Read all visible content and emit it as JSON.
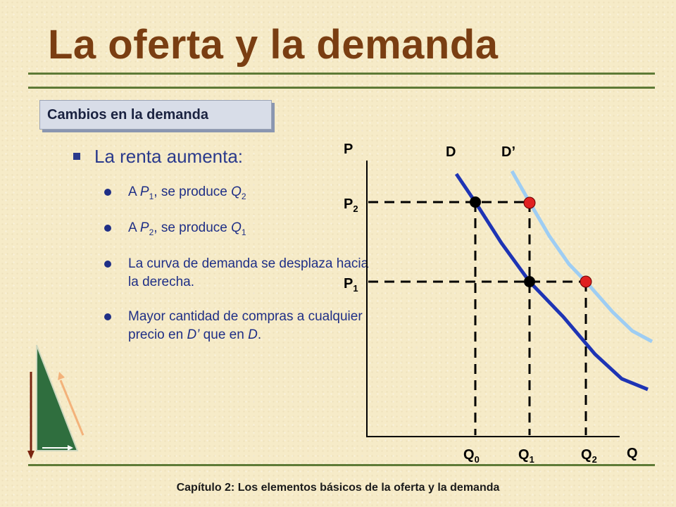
{
  "title": "La oferta y la demanda",
  "tag": "Cambios en la demanda",
  "bullet_main": "La renta aumenta:",
  "bullets": [
    {
      "a": "A ",
      "v1": "P",
      "s1": "1",
      "b": ", se produce ",
      "v2": "Q",
      "s2": "2"
    },
    {
      "a": "A ",
      "v1": "P",
      "s1": "2",
      "b": ", se produce ",
      "v2": "Q",
      "s2": "1"
    },
    {
      "text": "La curva de demanda se desplaza hacia la derecha."
    },
    {
      "pre": "Mayor cantidad de compras a cualquier precio en ",
      "d1": "D’",
      "mid": " que en ",
      "d2": "D",
      "post": "."
    }
  ],
  "footer": "Capítulo 2: Los elementos básicos de la oferta y la demanda",
  "colors": {
    "title": "#7a3e12",
    "rule": "#5e7a36",
    "curve_D": "#1e34b4",
    "curve_D2": "#9ecdf3",
    "point_new": "#e02020",
    "point_old": "#000000",
    "text": "#1f2f86"
  },
  "diagram": {
    "axis_y": "P",
    "axis_x": "Q",
    "curve_labels": [
      "D",
      "D’"
    ],
    "price_labels": [
      {
        "v": "P",
        "s": "2"
      },
      {
        "v": "P",
        "s": "1"
      }
    ],
    "qty_labels": [
      {
        "v": "Q",
        "s": "0"
      },
      {
        "v": "Q",
        "s": "1"
      },
      {
        "v": "Q",
        "s": "2"
      }
    ]
  },
  "icons": [
    "slide-corner-triangle-icon"
  ]
}
